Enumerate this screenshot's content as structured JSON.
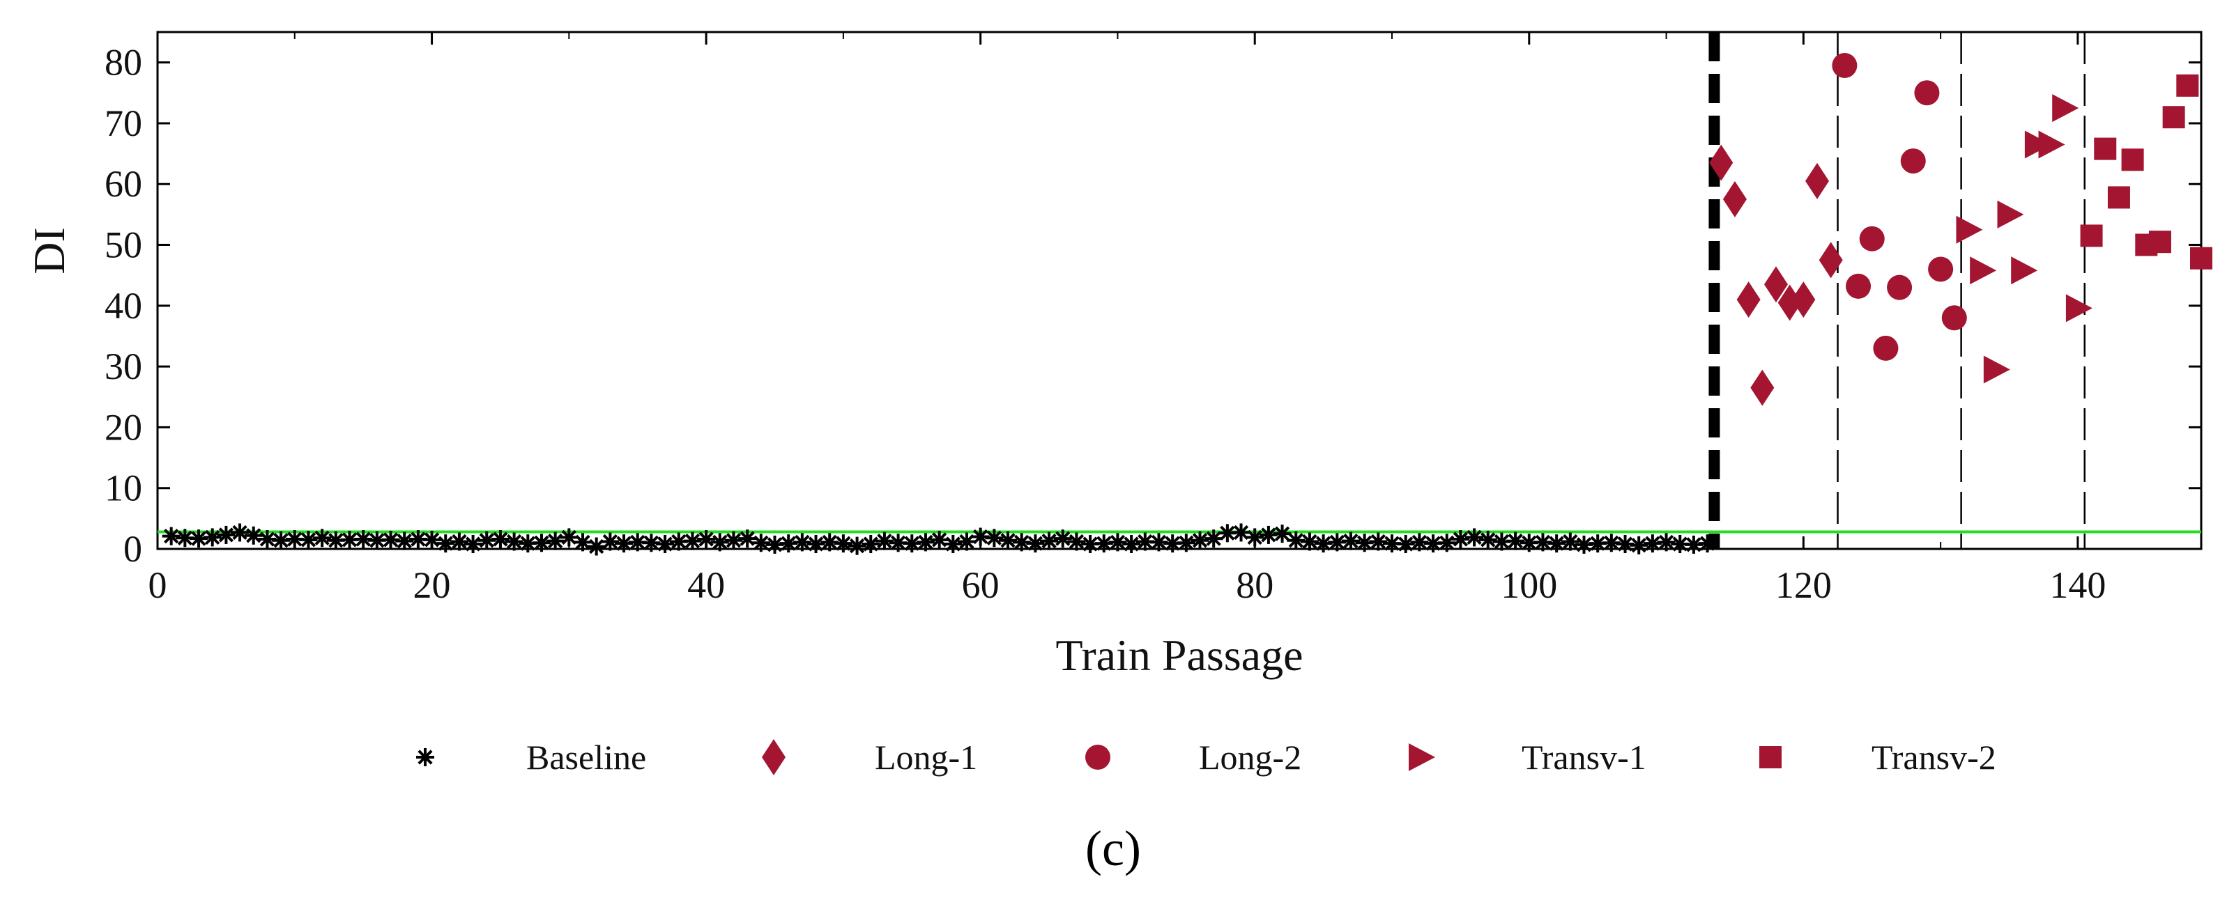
{
  "chart_data": {
    "type": "scatter",
    "xlabel": "Train Passage",
    "ylabel": "DI",
    "xlim": [
      0,
      149
    ],
    "ylim": [
      0,
      85
    ],
    "xticks": [
      0,
      20,
      40,
      60,
      80,
      100,
      120,
      140
    ],
    "yticks": [
      0,
      10,
      20,
      30,
      40,
      50,
      60,
      70,
      80
    ],
    "threshold": 2.8,
    "threshold_color": "#22dd22",
    "baseline_end": 113.5,
    "damage_boundaries": [
      122.5,
      131.5,
      140.5
    ],
    "marker_color": "#a31530",
    "baseline_color": "#000000",
    "panel_label": "(c)",
    "series": [
      {
        "name": "Baseline",
        "marker": "asterisk",
        "x": [
          1,
          2,
          3,
          4,
          5,
          6,
          7,
          8,
          9,
          10,
          11,
          12,
          13,
          14,
          15,
          16,
          17,
          18,
          19,
          20,
          21,
          22,
          23,
          24,
          25,
          26,
          27,
          28,
          29,
          30,
          31,
          32,
          33,
          34,
          35,
          36,
          37,
          38,
          39,
          40,
          41,
          42,
          43,
          44,
          45,
          46,
          47,
          48,
          49,
          50,
          51,
          52,
          53,
          54,
          55,
          56,
          57,
          58,
          59,
          60,
          61,
          62,
          63,
          64,
          65,
          66,
          67,
          68,
          69,
          70,
          71,
          72,
          73,
          74,
          75,
          76,
          77,
          78,
          79,
          80,
          81,
          82,
          83,
          84,
          85,
          86,
          87,
          88,
          89,
          90,
          91,
          92,
          93,
          94,
          95,
          96,
          97,
          98,
          99,
          100,
          101,
          102,
          103,
          104,
          105,
          106,
          107,
          108,
          109,
          110,
          111,
          112,
          113
        ],
        "y": [
          2.1,
          1.8,
          1.7,
          1.9,
          2.3,
          2.7,
          2.2,
          1.6,
          1.4,
          1.6,
          1.5,
          1.8,
          1.4,
          1.5,
          1.6,
          1.4,
          1.5,
          1.3,
          1.6,
          1.5,
          0.9,
          1.2,
          0.8,
          1.4,
          1.6,
          1.2,
          0.9,
          1.0,
          1.3,
          1.9,
          1.1,
          0.4,
          1.2,
          0.9,
          1.1,
          1.0,
          0.8,
          1.2,
          1.3,
          1.6,
          1.1,
          1.4,
          1.7,
          1.0,
          0.7,
          0.9,
          1.1,
          0.8,
          1.1,
          0.9,
          0.5,
          0.8,
          1.3,
          1.0,
          0.9,
          1.1,
          1.5,
          0.8,
          1.2,
          2.0,
          1.8,
          1.4,
          1.1,
          0.9,
          1.3,
          1.7,
          1.2,
          0.8,
          0.9,
          1.1,
          0.8,
          1.2,
          1.1,
          0.9,
          1.0,
          1.4,
          1.7,
          2.6,
          2.7,
          1.9,
          2.3,
          2.5,
          1.4,
          1.2,
          0.9,
          1.1,
          1.3,
          1.0,
          1.2,
          0.9,
          0.8,
          1.1,
          0.9,
          1.0,
          1.6,
          1.9,
          1.5,
          1.2,
          1.3,
          1.0,
          1.1,
          0.9,
          1.2,
          0.7,
          0.9,
          1.0,
          0.8,
          0.6,
          0.9,
          1.1,
          0.8,
          0.7,
          0.9
        ]
      },
      {
        "name": "Long-1",
        "marker": "diamond",
        "x": [
          114,
          115,
          116,
          117,
          118,
          119,
          120,
          121,
          122
        ],
        "y": [
          63.5,
          57.5,
          41,
          26.5,
          43.5,
          40.5,
          41,
          60.5,
          47.5
        ]
      },
      {
        "name": "Long-2",
        "marker": "circle",
        "x": [
          123,
          124,
          125,
          126,
          127,
          128,
          129,
          130,
          131
        ],
        "y": [
          79.5,
          43.2,
          51,
          33,
          43,
          63.8,
          75,
          46,
          38
        ]
      },
      {
        "name": "Transv-1",
        "marker": "triangle-right",
        "x": [
          132,
          133,
          134,
          135,
          136,
          137,
          138,
          139,
          140
        ],
        "y": [
          52.5,
          45.8,
          29.5,
          55,
          45.8,
          66.5,
          66.5,
          72.5,
          39.6
        ]
      },
      {
        "name": "Transv-2",
        "marker": "square",
        "x": [
          141,
          142,
          143,
          144,
          145,
          146,
          147,
          148,
          149
        ],
        "y": [
          51.5,
          65.8,
          57.8,
          64,
          50,
          50.5,
          71,
          76.2,
          47.8
        ]
      }
    ]
  }
}
